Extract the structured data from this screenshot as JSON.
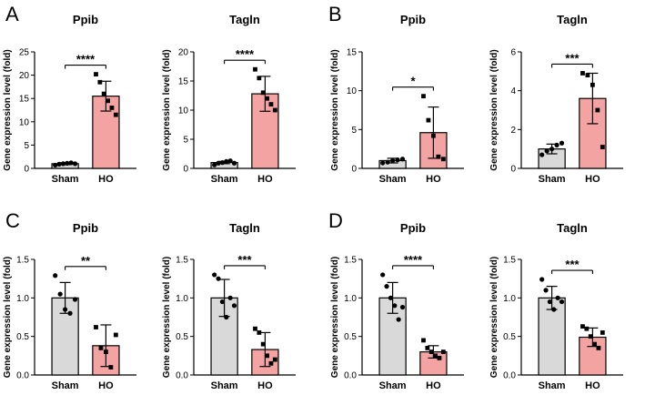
{
  "colors": {
    "sham": "#d9d9d9",
    "ho": "#f4a3a3",
    "axis": "#000000",
    "point": "#000000"
  },
  "chart_data": [
    {
      "type": "bar",
      "panel": "A",
      "title": "Ppib",
      "ylabel": "Gene expression level (fold)",
      "categories": [
        "Sham",
        "HO"
      ],
      "means": [
        1.0,
        15.5
      ],
      "sd": [
        0.2,
        3.2
      ],
      "points": [
        [
          0.7,
          0.9,
          1.0,
          1.1,
          1.2,
          1.0
        ],
        [
          20.2,
          18.5,
          16.0,
          14.5,
          13.0,
          11.5
        ]
      ],
      "ylim": [
        0,
        25
      ],
      "yticks": [
        "0",
        "5",
        "10",
        "15",
        "20",
        "25"
      ],
      "significance": "****"
    },
    {
      "type": "bar",
      "panel": "A",
      "title": "Tagln",
      "ylabel": "Gene expression level (fold)",
      "categories": [
        "Sham",
        "HO"
      ],
      "means": [
        1.0,
        12.8
      ],
      "sd": [
        0.2,
        3.0
      ],
      "points": [
        [
          0.6,
          0.9,
          1.0,
          1.2,
          1.3,
          0.9
        ],
        [
          17.0,
          15.5,
          13.0,
          12.0,
          11.0,
          10.0
        ]
      ],
      "ylim": [
        0,
        20
      ],
      "yticks": [
        "0",
        "5",
        "10",
        "15",
        "20"
      ],
      "significance": "****"
    },
    {
      "type": "bar",
      "panel": "B",
      "title": "Ppib",
      "ylabel": "Gene expression level (fold)",
      "categories": [
        "Sham",
        "HO"
      ],
      "means": [
        1.0,
        4.6
      ],
      "sd": [
        0.3,
        3.3
      ],
      "points": [
        [
          0.7,
          0.8,
          1.0,
          1.1,
          1.2
        ],
        [
          9.3,
          6.2,
          4.2,
          1.5,
          1.2
        ]
      ],
      "ylim": [
        0,
        15
      ],
      "yticks": [
        "0",
        "5",
        "10",
        "15"
      ],
      "significance": "*"
    },
    {
      "type": "bar",
      "panel": "B",
      "title": "Tagln",
      "ylabel": "Gene expression level (fold)",
      "categories": [
        "Sham",
        "HO"
      ],
      "means": [
        1.0,
        3.6
      ],
      "sd": [
        0.25,
        1.3
      ],
      "points": [
        [
          0.7,
          0.9,
          1.0,
          1.2,
          1.3
        ],
        [
          4.9,
          4.8,
          4.3,
          3.0,
          1.1
        ]
      ],
      "ylim": [
        0,
        6
      ],
      "yticks": [
        "0",
        "2",
        "4",
        "6"
      ],
      "significance": "***"
    },
    {
      "type": "bar",
      "panel": "C",
      "title": "Ppib",
      "ylabel": "Gene expression level (fold)",
      "categories": [
        "Sham",
        "HO"
      ],
      "means": [
        1.0,
        0.38
      ],
      "sd": [
        0.2,
        0.27
      ],
      "points": [
        [
          1.29,
          1.05,
          0.85,
          0.8,
          0.98
        ],
        [
          0.62,
          0.35,
          0.3,
          0.1,
          0.52
        ]
      ],
      "ylim": [
        0,
        1.5
      ],
      "yticks": [
        "0.0",
        "0.5",
        "1.0",
        "1.5"
      ],
      "significance": "**"
    },
    {
      "type": "bar",
      "panel": "C",
      "title": "Tagln",
      "ylabel": "Gene expression level (fold)",
      "categories": [
        "Sham",
        "HO"
      ],
      "means": [
        1.0,
        0.33
      ],
      "sd": [
        0.24,
        0.22
      ],
      "points": [
        [
          1.3,
          1.25,
          0.95,
          0.75,
          1.0,
          0.9
        ],
        [
          0.6,
          0.55,
          0.4,
          0.25,
          0.15,
          0.2
        ]
      ],
      "ylim": [
        0,
        1.5
      ],
      "yticks": [
        "0.0",
        "0.5",
        "1.0",
        "1.5"
      ],
      "significance": "***"
    },
    {
      "type": "bar",
      "panel": "D",
      "title": "Ppib",
      "ylabel": "Gene expression level (fold)",
      "categories": [
        "Sham",
        "HO"
      ],
      "means": [
        1.0,
        0.3
      ],
      "sd": [
        0.2,
        0.08
      ],
      "points": [
        [
          1.3,
          1.15,
          1.0,
          0.9,
          0.72,
          0.88
        ],
        [
          0.45,
          0.35,
          0.3,
          0.25,
          0.22,
          0.3
        ]
      ],
      "ylim": [
        0,
        1.5
      ],
      "yticks": [
        "0.0",
        "0.5",
        "1.0",
        "1.5"
      ],
      "significance": "****"
    },
    {
      "type": "bar",
      "panel": "D",
      "title": "Tagln",
      "ylabel": "Gene expression level (fold)",
      "categories": [
        "Sham",
        "HO"
      ],
      "means": [
        1.0,
        0.49
      ],
      "sd": [
        0.15,
        0.12
      ],
      "points": [
        [
          1.24,
          1.1,
          0.95,
          0.85,
          1.0,
          0.95
        ],
        [
          0.63,
          0.6,
          0.5,
          0.4,
          0.35,
          0.55
        ]
      ],
      "ylim": [
        0,
        1.5
      ],
      "yticks": [
        "0.0",
        "0.5",
        "1.0",
        "1.5"
      ],
      "significance": "***"
    }
  ]
}
